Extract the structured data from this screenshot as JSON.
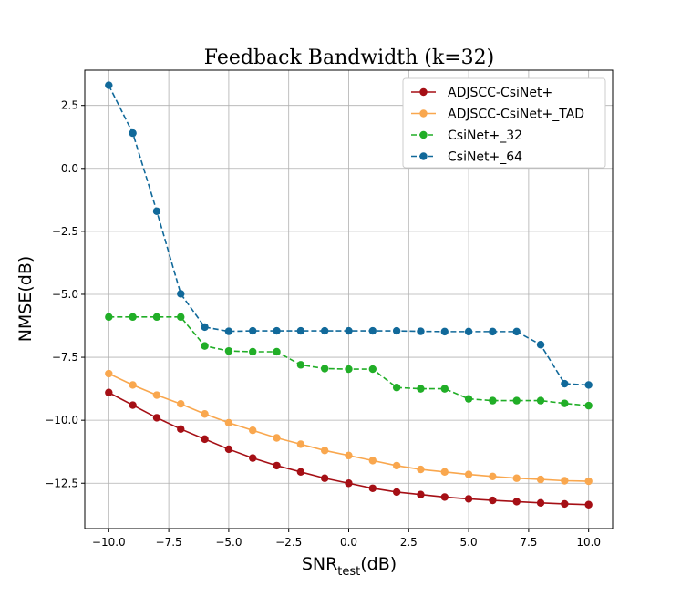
{
  "chart_data": {
    "type": "line",
    "title": "Feedback Bandwidth (k=32)",
    "xlabel": "SNR",
    "xlabel_sub": "test",
    "xlabel_suffix": "(dB)",
    "ylabel": "NMSE(dB)",
    "xlim": [
      -11,
      11
    ],
    "ylim": [
      -14.3,
      3.9
    ],
    "grid": true,
    "legend_position": "top-right",
    "x": [
      -10,
      -9,
      -8,
      -7,
      -6,
      -5,
      -4,
      -3,
      -2,
      -1,
      0,
      1,
      2,
      3,
      4,
      5,
      6,
      7,
      8,
      9,
      10
    ],
    "xticks": [
      -10.0,
      -7.5,
      -5.0,
      -2.5,
      0.0,
      2.5,
      5.0,
      7.5,
      10.0
    ],
    "xtick_labels": [
      "−10.0",
      "−7.5",
      "−5.0",
      "−2.5",
      "0.0",
      "2.5",
      "5.0",
      "7.5",
      "10.0"
    ],
    "yticks": [
      2.5,
      0.0,
      -2.5,
      -5.0,
      -7.5,
      -10.0,
      -12.5
    ],
    "ytick_labels": [
      "2.5",
      "0.0",
      "−2.5",
      "−5.0",
      "−7.5",
      "−10.0",
      "−12.5"
    ],
    "series": [
      {
        "name": "ADJSCC-CsiNet+",
        "color": "#a50f15",
        "dashed": false,
        "values": [
          -8.9,
          -9.4,
          -9.9,
          -10.35,
          -10.75,
          -11.15,
          -11.5,
          -11.8,
          -12.05,
          -12.3,
          -12.5,
          -12.7,
          -12.85,
          -12.95,
          -13.05,
          -13.12,
          -13.18,
          -13.23,
          -13.28,
          -13.32,
          -13.35
        ]
      },
      {
        "name": "ADJSCC-CsiNet+_TAD",
        "color": "#f9a74e",
        "dashed": false,
        "values": [
          -8.15,
          -8.6,
          -9.0,
          -9.35,
          -9.75,
          -10.1,
          -10.4,
          -10.7,
          -10.95,
          -11.2,
          -11.4,
          -11.6,
          -11.8,
          -11.95,
          -12.05,
          -12.15,
          -12.23,
          -12.3,
          -12.35,
          -12.4,
          -12.42
        ]
      },
      {
        "name": "CsiNet+_32",
        "color": "#21ae27",
        "dashed": true,
        "values": [
          -5.9,
          -5.9,
          -5.9,
          -5.9,
          -7.05,
          -7.25,
          -7.28,
          -7.28,
          -7.8,
          -7.95,
          -7.97,
          -7.97,
          -8.7,
          -8.75,
          -8.75,
          -9.15,
          -9.22,
          -9.22,
          -9.22,
          -9.33,
          -9.42
        ]
      },
      {
        "name": "CsiNet+_64",
        "color": "#11699a",
        "dashed": true,
        "values": [
          3.3,
          1.4,
          -1.7,
          -4.98,
          -6.3,
          -6.47,
          -6.45,
          -6.45,
          -6.45,
          -6.45,
          -6.45,
          -6.45,
          -6.45,
          -6.47,
          -6.48,
          -6.48,
          -6.48,
          -6.48,
          -7.0,
          -8.55,
          -8.6
        ]
      }
    ]
  }
}
